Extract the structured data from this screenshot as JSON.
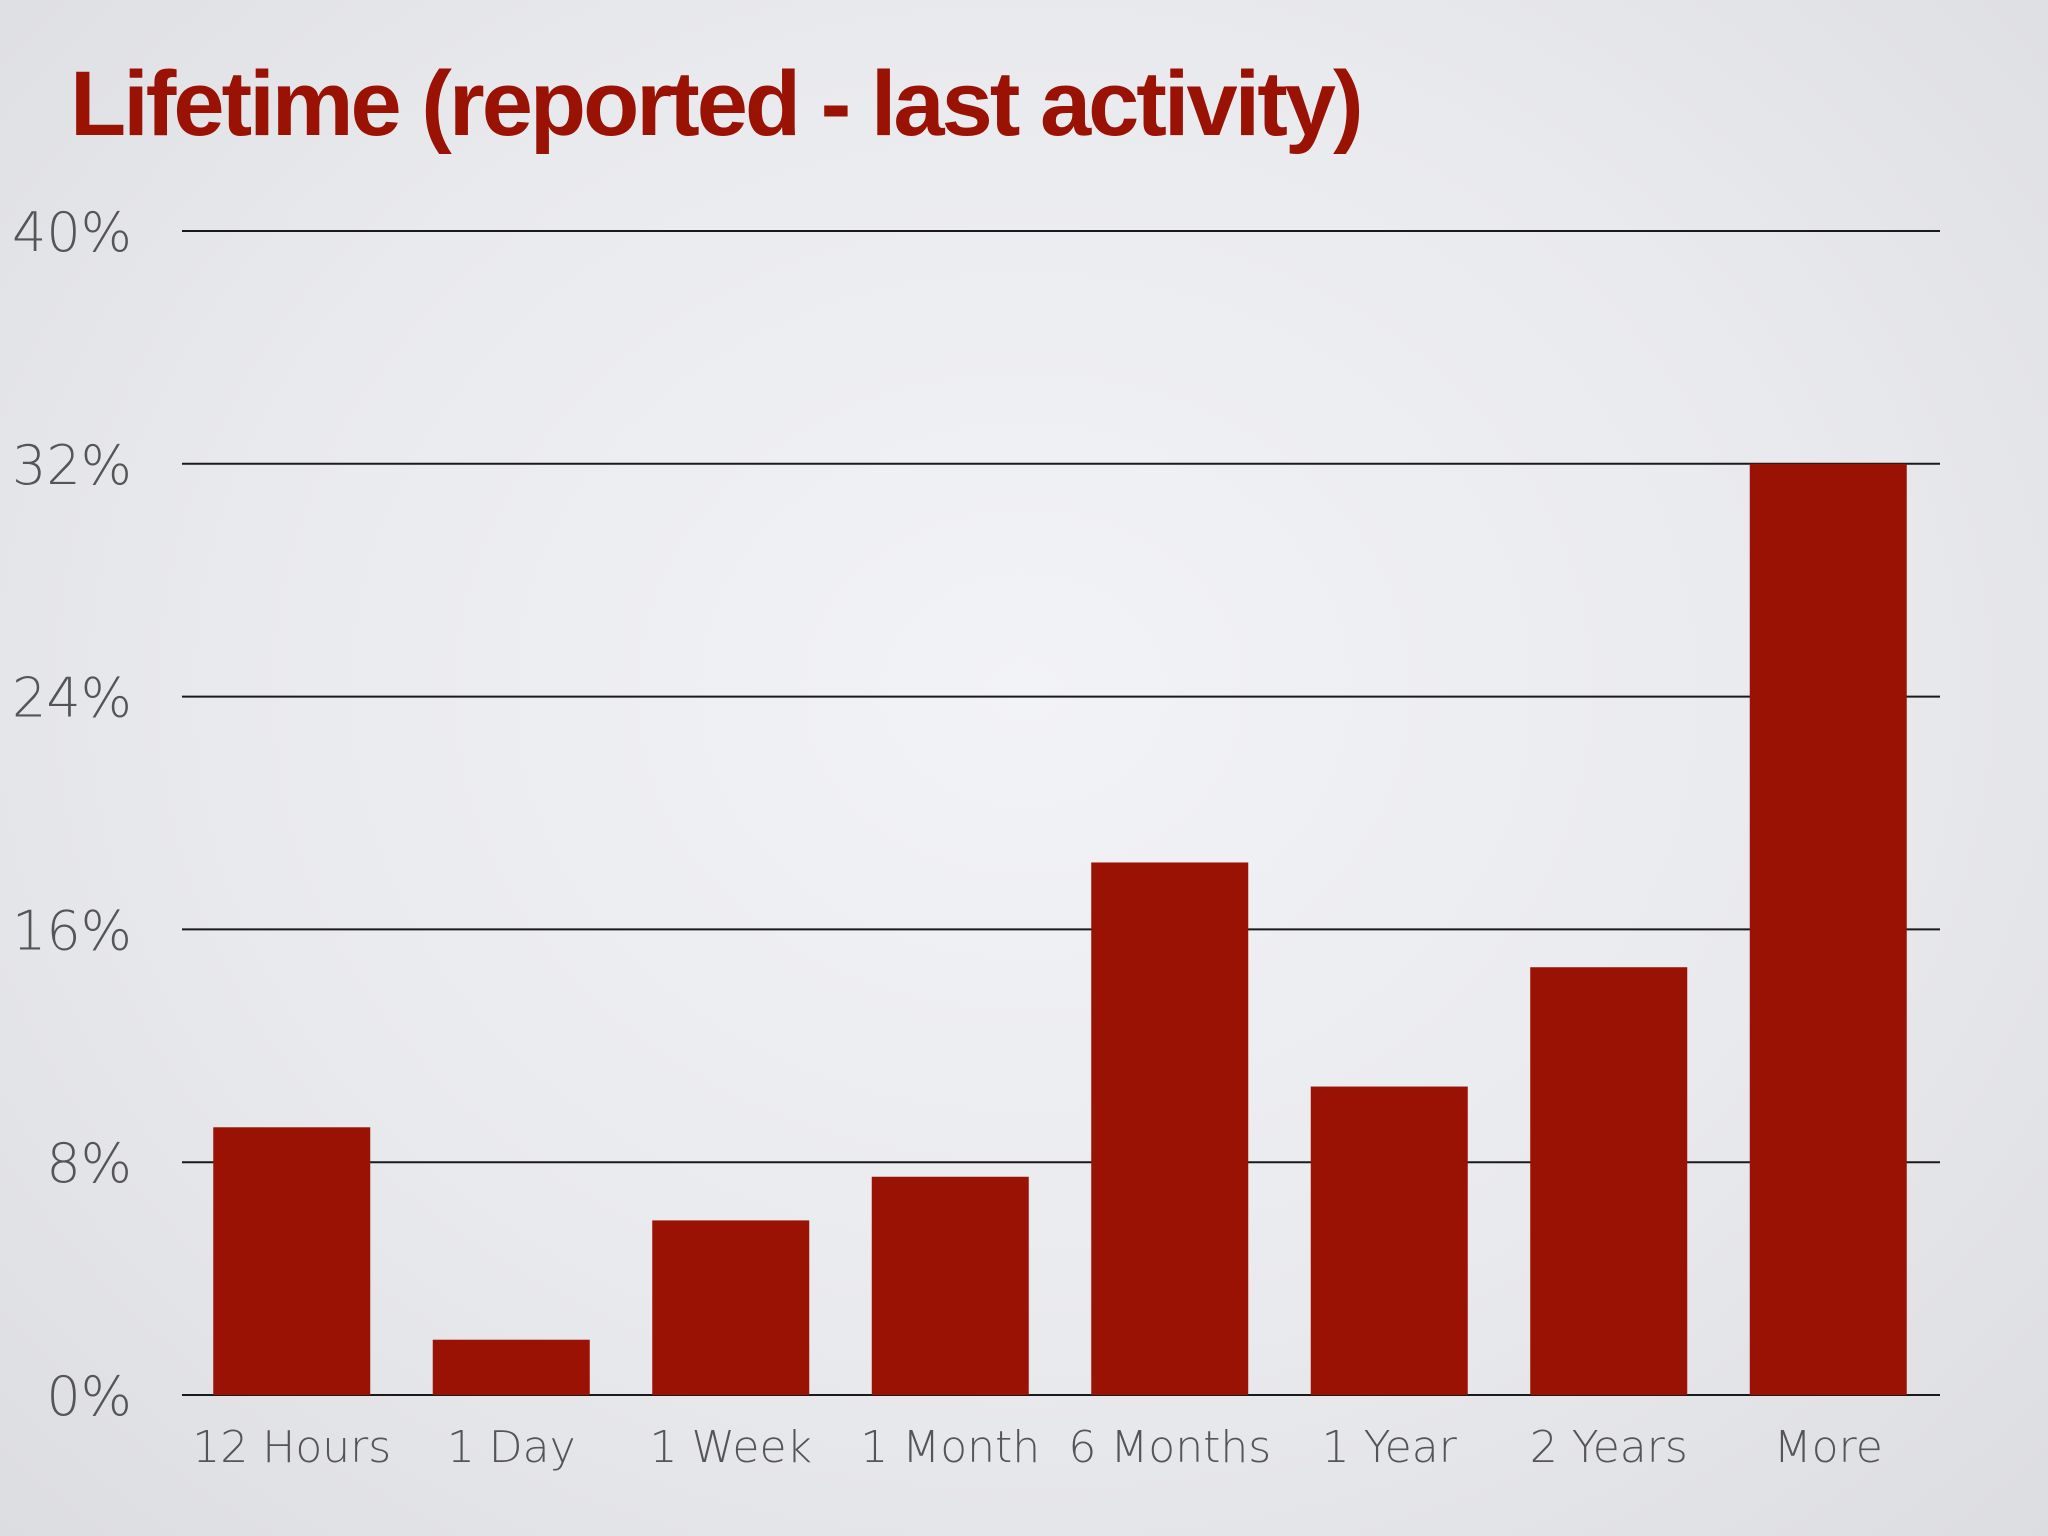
{
  "slide": {
    "title": "Lifetime (reported - last activity)"
  },
  "chart_data": {
    "type": "bar",
    "title": "Lifetime (reported - last activity)",
    "xlabel": "",
    "ylabel": "",
    "categories": [
      "12 Hours",
      "1 Day",
      "1 Week",
      "1 Month",
      "6 Months",
      "1 Year",
      "2 Years",
      "More"
    ],
    "values": [
      9.2,
      1.9,
      6.0,
      7.5,
      18.3,
      10.6,
      14.7,
      32.0
    ],
    "value_unit": "%",
    "ylim": [
      0,
      40
    ],
    "yticks": [
      0,
      8,
      16,
      24,
      32,
      40
    ],
    "ytick_labels": [
      "0%",
      "8%",
      "16%",
      "24%",
      "32%",
      "40%"
    ],
    "grid": true,
    "legend": "none",
    "colors": {
      "bar": "#9a1203",
      "title": "#9a1203",
      "gridline": "#1a1a1a",
      "tick_label": "#555555"
    }
  }
}
